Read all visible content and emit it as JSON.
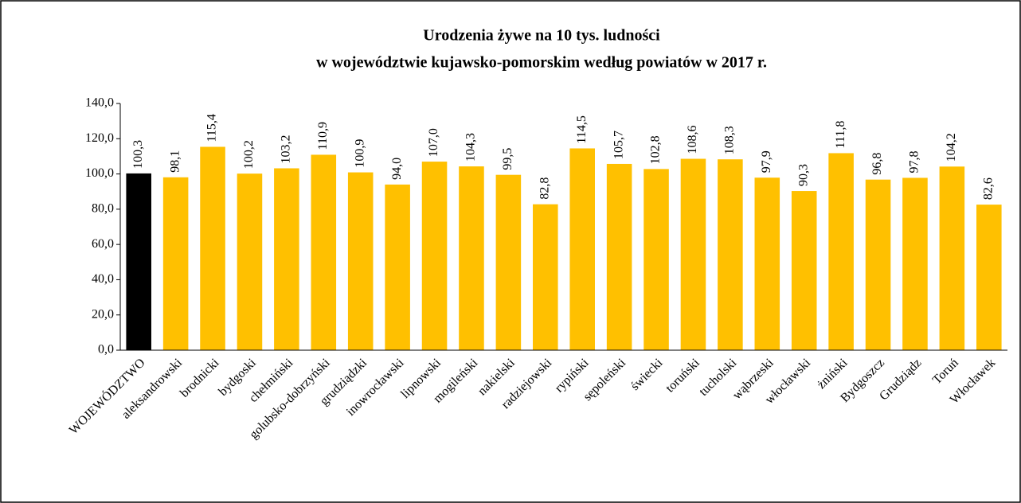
{
  "chart_data": {
    "type": "bar",
    "title": [
      "Urodzenia żywe na 10 tys. ludności",
      "w województwie kujawsko-pomorskim według powiatów w 2017 r."
    ],
    "categories": [
      "WOJEWÓDZTWO",
      "aleksandrowski",
      "brodnicki",
      "bydgoski",
      "chełmiński",
      "golubsko-dobrzyński",
      "grudziądzki",
      "inowrocławski",
      "lipnowski",
      "mogileński",
      "nakielski",
      "radziejowski",
      "rypiński",
      "sępoleński",
      "świecki",
      "toruński",
      "tucholski",
      "wąbrzeski",
      "włocławski",
      "żniński",
      "Bydgoszcz",
      "Grudziądz",
      "Toruń",
      "Włocławek"
    ],
    "values": [
      100.3,
      98.1,
      115.4,
      100.2,
      103.2,
      110.9,
      100.9,
      94.0,
      107.0,
      104.3,
      99.5,
      82.8,
      114.5,
      105.7,
      102.8,
      108.6,
      108.3,
      97.9,
      90.3,
      111.8,
      96.8,
      97.8,
      104.2,
      82.6
    ],
    "value_labels": [
      "100,3",
      "98,1",
      "115,4",
      "100,2",
      "103,2",
      "110,9",
      "100,9",
      "94,0",
      "107,0",
      "104,3",
      "99,5",
      "82,8",
      "114,5",
      "105,7",
      "102,8",
      "108,6",
      "108,3",
      "97,9",
      "90,3",
      "111,8",
      "96,8",
      "97,8",
      "104,2",
      "82,6"
    ],
    "colors": [
      "#000000",
      "#ffc000",
      "#ffc000",
      "#ffc000",
      "#ffc000",
      "#ffc000",
      "#ffc000",
      "#ffc000",
      "#ffc000",
      "#ffc000",
      "#ffc000",
      "#ffc000",
      "#ffc000",
      "#ffc000",
      "#ffc000",
      "#ffc000",
      "#ffc000",
      "#ffc000",
      "#ffc000",
      "#ffc000",
      "#ffc000",
      "#ffc000",
      "#ffc000",
      "#ffc000"
    ],
    "ylim": [
      0,
      140
    ],
    "yticks": [
      {
        "value": 0,
        "label": "0,0"
      },
      {
        "value": 20,
        "label": "20,0"
      },
      {
        "value": 40,
        "label": "40,0"
      },
      {
        "value": 60,
        "label": "60,0"
      },
      {
        "value": 80,
        "label": "80,0"
      },
      {
        "value": 100,
        "label": "100,0"
      },
      {
        "value": 120,
        "label": "120,0"
      },
      {
        "value": 140,
        "label": "140,0"
      }
    ],
    "grid": false
  }
}
